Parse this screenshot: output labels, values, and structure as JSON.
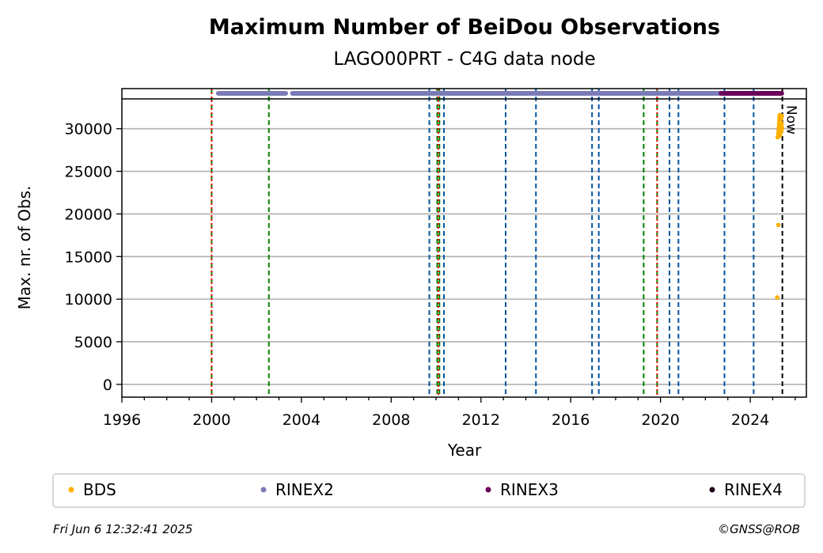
{
  "chart_data": {
    "type": "scatter",
    "title": "Maximum Number of BeiDou Observations",
    "subtitle": "LAGO00PRT - C4G data node",
    "xlabel": "Year",
    "ylabel": "Max. nr. of Obs.",
    "xlim": [
      1996,
      2026.5
    ],
    "ylim": [
      -1500,
      33500
    ],
    "xticks": [
      1996,
      2000,
      2004,
      2008,
      2012,
      2016,
      2020,
      2024
    ],
    "xtick_labels": [
      "1996",
      "2000",
      "2004",
      "2008",
      "2012",
      "2016",
      "2020",
      "2024"
    ],
    "yticks": [
      0,
      5000,
      10000,
      15000,
      20000,
      25000,
      30000
    ],
    "ytick_labels": [
      "0",
      "5000",
      "10000",
      "15000",
      "20000",
      "25000",
      "30000"
    ],
    "grid": "y",
    "now_label": "Now",
    "now_year": 2025.43,
    "series": [
      {
        "name": "BDS",
        "color": "#ffb000",
        "points": [
          [
            2025.25,
            18700
          ],
          [
            2025.2,
            10200
          ],
          [
            2025.22,
            29000
          ],
          [
            2025.24,
            29400
          ],
          [
            2025.26,
            29800
          ],
          [
            2025.27,
            30200
          ],
          [
            2025.28,
            30600
          ],
          [
            2025.29,
            31000
          ],
          [
            2025.3,
            31300
          ],
          [
            2025.31,
            31600
          ],
          [
            2025.32,
            29200
          ],
          [
            2025.33,
            30000
          ],
          [
            2025.34,
            30800
          ],
          [
            2025.35,
            31400
          ],
          [
            2025.36,
            29600
          ],
          [
            2025.37,
            30400
          ],
          [
            2025.38,
            31200
          ],
          [
            2025.39,
            29800
          ],
          [
            2025.4,
            30600
          ],
          [
            2025.41,
            31500
          ],
          [
            2025.42,
            30100
          ]
        ]
      }
    ],
    "timeline": [
      {
        "name": "RINEX2",
        "color": "#7b7bb8",
        "from": 2000.3,
        "to": 2003.3
      },
      {
        "name": "RINEX2",
        "color": "#7b7bb8",
        "from": 2003.6,
        "to": 2022.7
      },
      {
        "name": "RINEX3",
        "color": "#6a0059",
        "from": 2022.7,
        "to": 2025.4
      }
    ],
    "vlines": [
      {
        "x": 2000.0,
        "color": "#008000",
        "style": "dashed"
      },
      {
        "x": 2000.0,
        "color": "#ff0000",
        "style": "dotted"
      },
      {
        "x": 2002.55,
        "color": "#008000",
        "style": "dashed"
      },
      {
        "x": 2009.7,
        "color": "#0055a4",
        "style": "dashed"
      },
      {
        "x": 2010.05,
        "color": "#008000",
        "style": "dashed"
      },
      {
        "x": 2010.15,
        "color": "#008000",
        "style": "dashed"
      },
      {
        "x": 2010.1,
        "color": "#ff0000",
        "style": "dotted"
      },
      {
        "x": 2010.35,
        "color": "#0055a4",
        "style": "dashed"
      },
      {
        "x": 2013.1,
        "color": "#0055a4",
        "style": "dashed"
      },
      {
        "x": 2014.45,
        "color": "#0055a4",
        "style": "dashed"
      },
      {
        "x": 2016.95,
        "color": "#0055a4",
        "style": "dashed"
      },
      {
        "x": 2017.25,
        "color": "#0055a4",
        "style": "dashed"
      },
      {
        "x": 2019.25,
        "color": "#008000",
        "style": "dashed"
      },
      {
        "x": 2019.85,
        "color": "#008000",
        "style": "dashed"
      },
      {
        "x": 2019.85,
        "color": "#ff0000",
        "style": "dotted"
      },
      {
        "x": 2020.4,
        "color": "#0055a4",
        "style": "dashed"
      },
      {
        "x": 2020.8,
        "color": "#0055a4",
        "style": "dashed"
      },
      {
        "x": 2022.85,
        "color": "#0055a4",
        "style": "dashed"
      },
      {
        "x": 2024.15,
        "color": "#0055a4",
        "style": "dashed"
      }
    ],
    "legend": {
      "placement": "bottom",
      "entries": [
        {
          "label": "BDS",
          "color": "#ffb000"
        },
        {
          "label": "RINEX2",
          "color": "#7b7bb8"
        },
        {
          "label": "RINEX3",
          "color": "#6a0059"
        },
        {
          "label": "RINEX4",
          "color": "#22001a"
        }
      ]
    },
    "footer_left": "Fri Jun  6 12:32:41 2025",
    "footer_right": "©GNSS@ROB"
  }
}
